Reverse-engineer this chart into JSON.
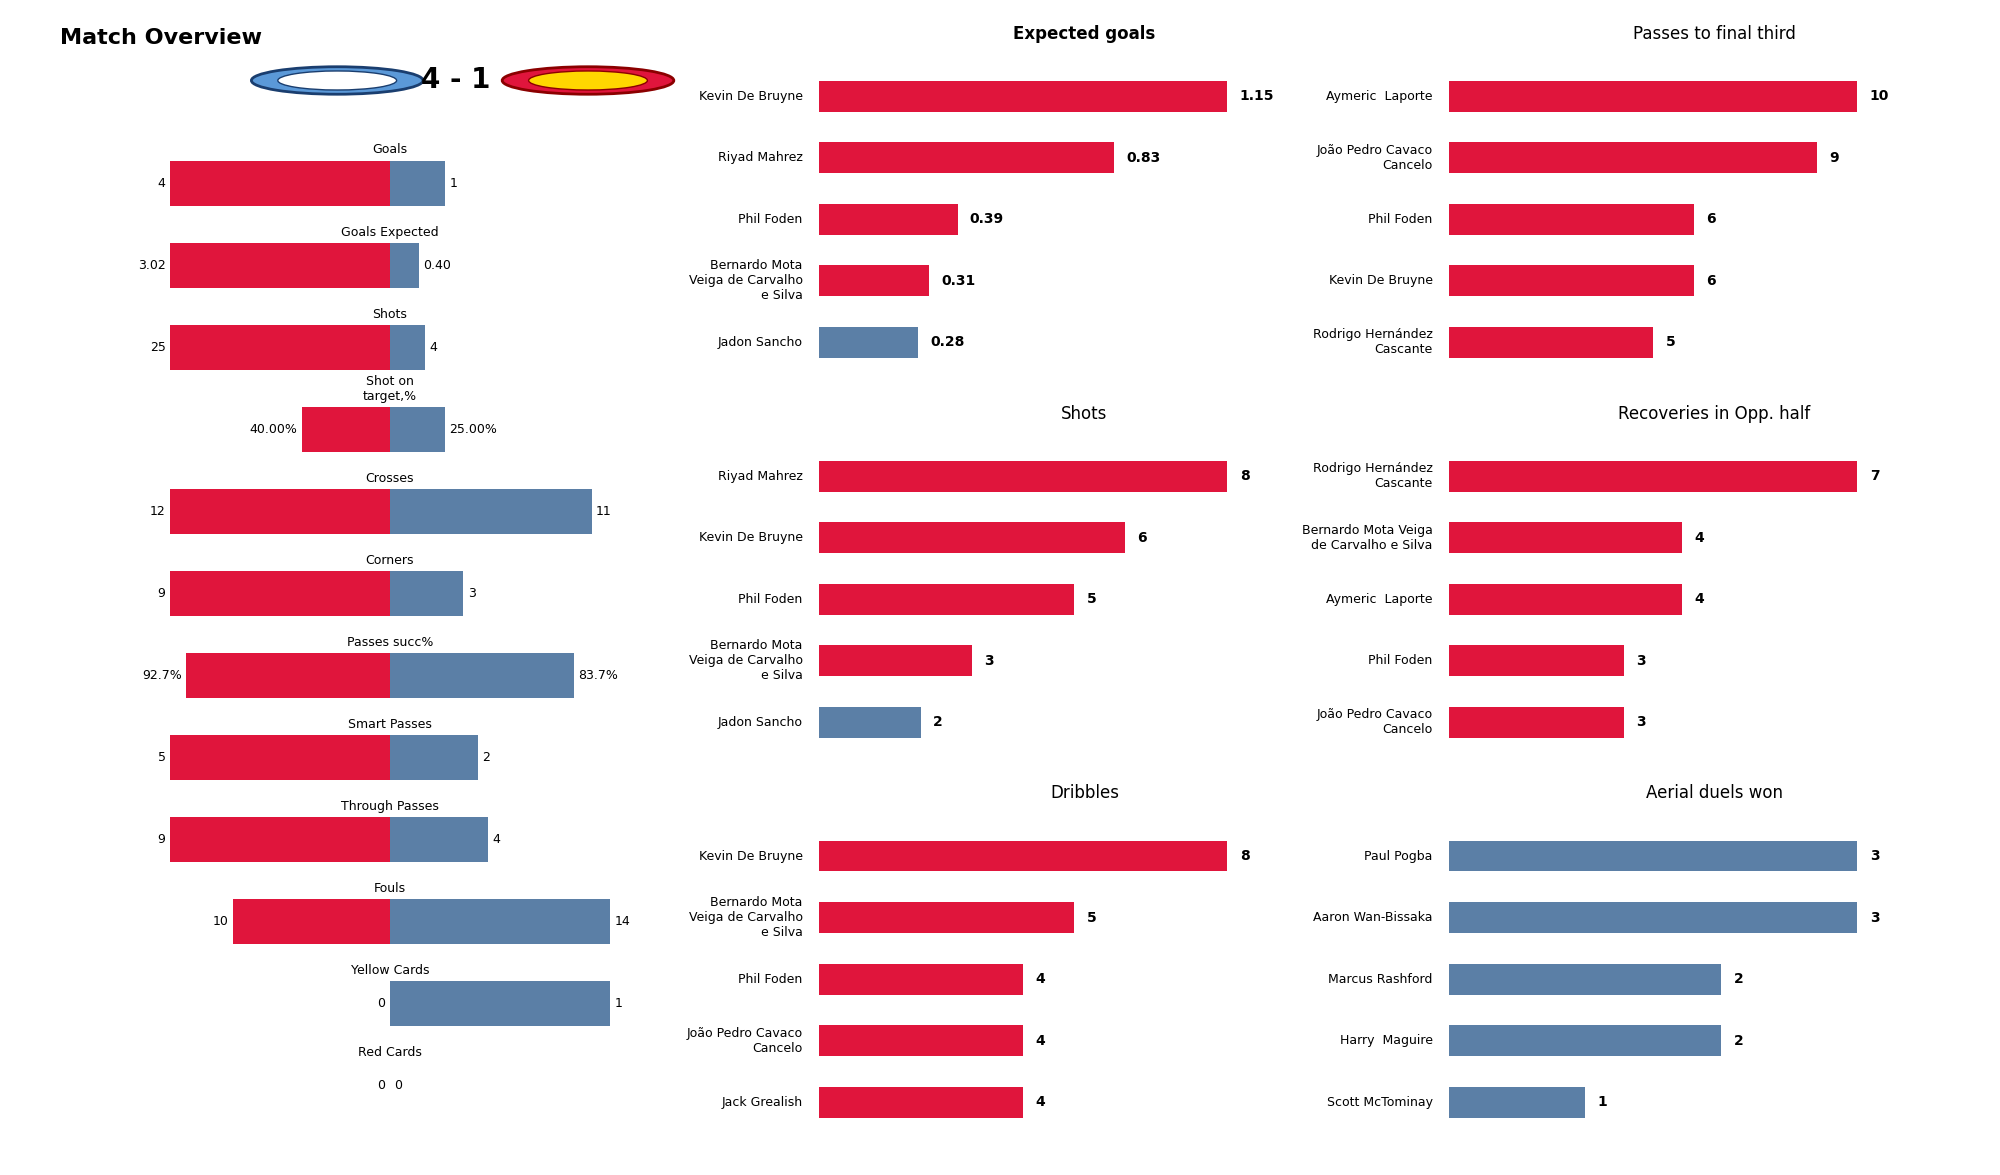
{
  "title": "Match Overview",
  "score": "4 - 1",
  "team1_color": "#E0153C",
  "team2_color": "#5B7FA6",
  "overview_stats": {
    "labels": [
      "Goals",
      "Goals Expected",
      "Shots",
      "Shot on\ntarget,%",
      "Crosses",
      "Corners",
      "Passes succ%",
      "Smart Passes",
      "Through Passes",
      "Fouls",
      "Yellow Cards",
      "Red Cards"
    ],
    "team1_values": [
      4,
      3.02,
      25,
      40.0,
      12,
      9,
      92.7,
      5,
      9,
      10,
      0,
      0
    ],
    "team2_values": [
      1,
      0.4,
      4,
      25.0,
      11,
      3,
      83.7,
      2,
      4,
      14,
      1,
      0
    ],
    "team1_labels": [
      "4",
      "3.02",
      "25",
      "40.00%",
      "12",
      "9",
      "92.7%",
      "5",
      "9",
      "10",
      "0",
      "0"
    ],
    "team2_labels": [
      "1",
      "0.40",
      "4",
      "25.00%",
      "11",
      "3",
      "83.7%",
      "2",
      "4",
      "14",
      "1",
      "0"
    ],
    "is_percent": [
      false,
      false,
      false,
      true,
      false,
      false,
      true,
      false,
      false,
      false,
      false,
      false
    ],
    "norm_max": [
      4,
      3.02,
      25,
      40.0,
      12,
      9,
      92.7,
      5,
      9,
      14,
      1,
      1
    ]
  },
  "expected_goals": {
    "title": "Expected goals",
    "title_bold": true,
    "players": [
      "Kevin De Bruyne",
      "Riyad Mahrez",
      "Phil Foden",
      "Bernardo Mota\nVeiga de Carvalho\ne Silva",
      "Jadon Sancho"
    ],
    "values": [
      1.15,
      0.83,
      0.39,
      0.31,
      0.28
    ],
    "colors": [
      "#E0153C",
      "#E0153C",
      "#E0153C",
      "#E0153C",
      "#5B7FA6"
    ]
  },
  "shots": {
    "title": "Shots",
    "title_bold": false,
    "players": [
      "Riyad Mahrez",
      "Kevin De Bruyne",
      "Phil Foden",
      "Bernardo Mota\nVeiga de Carvalho\ne Silva",
      "Jadon Sancho"
    ],
    "values": [
      8,
      6,
      5,
      3,
      2
    ],
    "colors": [
      "#E0153C",
      "#E0153C",
      "#E0153C",
      "#E0153C",
      "#5B7FA6"
    ]
  },
  "dribbles": {
    "title": "Dribbles",
    "title_bold": false,
    "players": [
      "Kevin De Bruyne",
      "Bernardo Mota\nVeiga de Carvalho\ne Silva",
      "Phil Foden",
      "João Pedro Cavaco\nCancelo",
      "Jack Grealish"
    ],
    "values": [
      8,
      5,
      4,
      4,
      4
    ],
    "colors": [
      "#E0153C",
      "#E0153C",
      "#E0153C",
      "#E0153C",
      "#E0153C"
    ]
  },
  "passes_final_third": {
    "title": "Passes to final third",
    "title_bold": false,
    "players": [
      "Aymeric  Laporte",
      "João Pedro Cavaco\nCancelo",
      "Phil Foden",
      "Kevin De Bruyne",
      "Rodrigo Hernández\nCascante"
    ],
    "values": [
      10,
      9,
      6,
      6,
      5
    ],
    "colors": [
      "#E0153C",
      "#E0153C",
      "#E0153C",
      "#E0153C",
      "#E0153C"
    ]
  },
  "recoveries_opp_half": {
    "title": "Recoveries in Opp. half",
    "title_bold": false,
    "players": [
      "Rodrigo Hernández\nCascante",
      "Bernardo Mota Veiga\nde Carvalho e Silva",
      "Aymeric  Laporte",
      "Phil Foden",
      "João Pedro Cavaco\nCancelo"
    ],
    "values": [
      7,
      4,
      4,
      3,
      3
    ],
    "colors": [
      "#E0153C",
      "#E0153C",
      "#E0153C",
      "#E0153C",
      "#E0153C"
    ]
  },
  "aerial_duels": {
    "title": "Aerial duels won",
    "title_bold": false,
    "players": [
      "Paul Pogba",
      "Aaron Wan-Bissaka",
      "Marcus Rashford",
      "Harry  Maguire",
      "Scott McTominay"
    ],
    "values": [
      3,
      3,
      2,
      2,
      1
    ],
    "colors": [
      "#5B7FA6",
      "#5B7FA6",
      "#5B7FA6",
      "#5B7FA6",
      "#5B7FA6"
    ]
  },
  "bg_color": "#FFFFFF",
  "text_color": "#000000"
}
